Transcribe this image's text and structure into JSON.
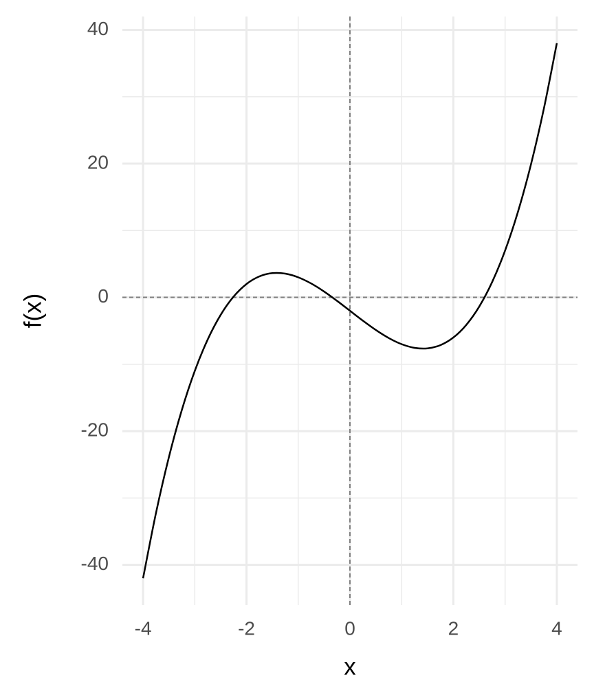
{
  "chart_data": {
    "type": "line",
    "x_label": "x",
    "y_label": "f(x)",
    "x": [
      -4,
      -3.75,
      -3.5,
      -3.25,
      -3,
      -2.75,
      -2.5,
      -2.25,
      -2,
      -1.75,
      -1.5,
      -1.25,
      -1,
      -0.75,
      -0.5,
      -0.25,
      0,
      0.25,
      0.5,
      0.75,
      1,
      1.25,
      1.5,
      1.75,
      2,
      2.25,
      2.5,
      2.75,
      3,
      3.25,
      3.5,
      3.75,
      4
    ],
    "series": [
      {
        "color": "#000000",
        "values": [
          -42,
          -32.234,
          -23.875,
          -16.828,
          -11,
          -6.297,
          -2.625,
          0.109,
          2,
          3.141,
          3.625,
          3.547,
          3,
          2.078,
          0.875,
          -0.516,
          -2,
          -3.484,
          -4.875,
          -6.078,
          -7,
          -7.547,
          -7.625,
          -7.141,
          -6,
          -4.109,
          -1.375,
          2.297,
          7,
          12.828,
          19.875,
          28.234,
          38
        ]
      }
    ],
    "xlim": [
      -4.4,
      4.4
    ],
    "ylim": [
      -46,
      42
    ],
    "xticks": [
      -4,
      -2,
      0,
      2,
      4
    ],
    "yticks": [
      -40,
      -20,
      0,
      20,
      40
    ],
    "minor_xticks": [
      -3,
      -1,
      1,
      3
    ],
    "minor_yticks": [
      -30,
      -10,
      10,
      30
    ],
    "grid": true,
    "hline": 0,
    "vline": 0
  }
}
